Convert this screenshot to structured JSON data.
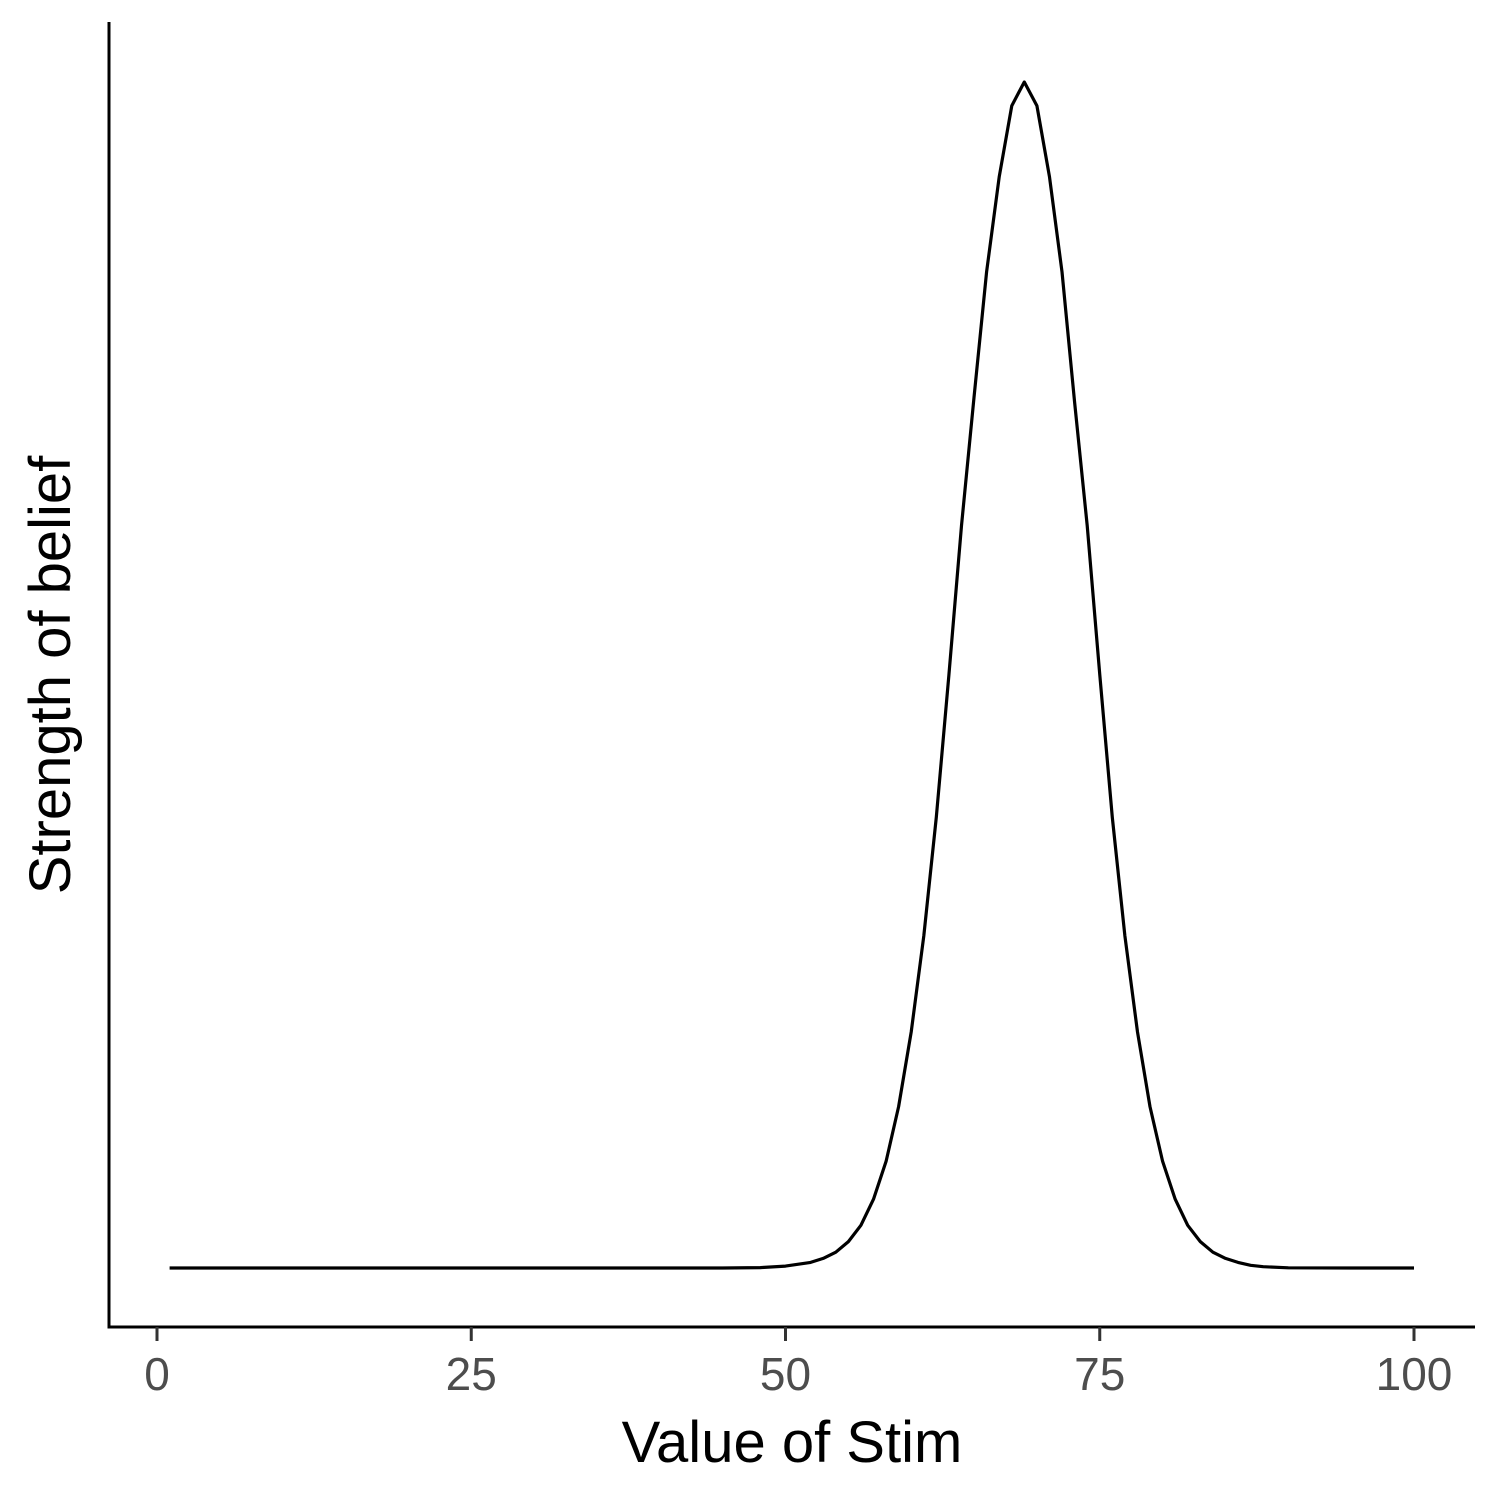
{
  "chart_data": {
    "type": "line",
    "title": "",
    "xlabel": "Value of Stim",
    "ylabel": "Strength of belief",
    "xlim": [
      -4,
      105
    ],
    "ylim": [
      -0.05,
      1.05
    ],
    "x_ticks": [
      0,
      25,
      50,
      75,
      100
    ],
    "y_ticks": [],
    "grid": false,
    "legend": "none",
    "colors": {
      "line": "#000000",
      "axis": "#000000",
      "tick_text": "#4d4d4d"
    },
    "series": [
      {
        "x": [
          1,
          10,
          20,
          30,
          40,
          45,
          48,
          50,
          52,
          53,
          54,
          55,
          56,
          57,
          58,
          59,
          60,
          61,
          62,
          63,
          64,
          65,
          66,
          67,
          68,
          69,
          70,
          71,
          72,
          73,
          74,
          75,
          76,
          77,
          78,
          79,
          80,
          81,
          82,
          83,
          84,
          85,
          86,
          87,
          88,
          90,
          95,
          100
        ],
        "y": [
          0,
          0,
          0,
          0,
          0,
          0,
          0.0003,
          0.0016,
          0.0047,
          0.0081,
          0.0133,
          0.0223,
          0.036,
          0.058,
          0.09,
          0.136,
          0.199,
          0.28,
          0.38,
          0.5,
          0.626,
          0.734,
          0.84,
          0.92,
          0.98,
          1.0,
          0.98,
          0.92,
          0.84,
          0.73,
          0.626,
          0.5,
          0.38,
          0.28,
          0.199,
          0.136,
          0.09,
          0.058,
          0.036,
          0.0223,
          0.0133,
          0.0081,
          0.0047,
          0.0023,
          0.0011,
          0.0002,
          0,
          0
        ]
      }
    ]
  }
}
